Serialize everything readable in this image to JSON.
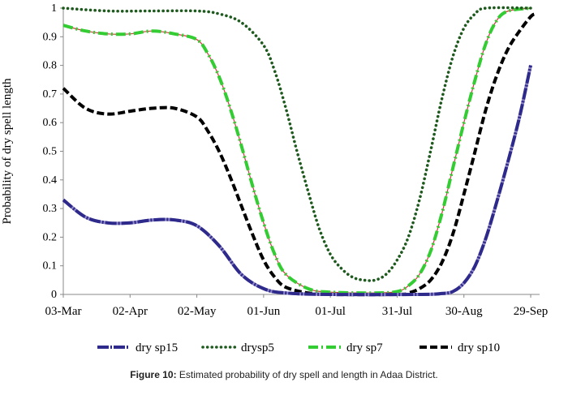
{
  "chart_data": {
    "type": "line",
    "title": "",
    "xlabel": "",
    "ylabel": "Probability of dry spell length",
    "ylim": [
      0,
      1
    ],
    "yticks": [
      0,
      0.1,
      0.2,
      0.3,
      0.4,
      0.5,
      0.6,
      0.7,
      0.8,
      0.9,
      1
    ],
    "ytick_labels": [
      "0",
      "0.1",
      "0.2",
      "0.3",
      "0.4",
      "0.5",
      "0.6",
      "0.7",
      "0.8",
      "0.9",
      "1"
    ],
    "x_start": "03-Mar",
    "x_range_days": [
      0,
      214
    ],
    "xticks": [
      {
        "day": 0,
        "label": "03-Mar"
      },
      {
        "day": 30,
        "label": "02-Apr"
      },
      {
        "day": 60,
        "label": "02-May"
      },
      {
        "day": 90,
        "label": "01-Jun"
      },
      {
        "day": 120,
        "label": "01-Jul"
      },
      {
        "day": 150,
        "label": "31-Jul"
      },
      {
        "day": 180,
        "label": "30-Aug"
      },
      {
        "day": 210,
        "label": "29-Sep"
      }
    ],
    "legend_position": "bottom",
    "series": [
      {
        "name": "dry sp15",
        "color": "#2e2a8c",
        "dash": "longdash",
        "points": [
          [
            0,
            0.33
          ],
          [
            10,
            0.27
          ],
          [
            20,
            0.25
          ],
          [
            30,
            0.25
          ],
          [
            40,
            0.26
          ],
          [
            50,
            0.26
          ],
          [
            60,
            0.24
          ],
          [
            70,
            0.17
          ],
          [
            80,
            0.07
          ],
          [
            90,
            0.02
          ],
          [
            100,
            0.005
          ],
          [
            120,
            0.0
          ],
          [
            160,
            0.0
          ],
          [
            170,
            0.003
          ],
          [
            175,
            0.01
          ],
          [
            180,
            0.04
          ],
          [
            185,
            0.1
          ],
          [
            190,
            0.2
          ],
          [
            195,
            0.33
          ],
          [
            200,
            0.47
          ],
          [
            205,
            0.62
          ],
          [
            210,
            0.8
          ]
        ]
      },
      {
        "name": "drysp5",
        "color": "#1e5a1e",
        "dash": "dotted",
        "points": [
          [
            0,
            1.0
          ],
          [
            20,
            0.99
          ],
          [
            40,
            0.99
          ],
          [
            60,
            0.99
          ],
          [
            70,
            0.98
          ],
          [
            80,
            0.95
          ],
          [
            90,
            0.87
          ],
          [
            95,
            0.78
          ],
          [
            100,
            0.65
          ],
          [
            105,
            0.5
          ],
          [
            110,
            0.36
          ],
          [
            115,
            0.23
          ],
          [
            120,
            0.14
          ],
          [
            125,
            0.09
          ],
          [
            130,
            0.06
          ],
          [
            135,
            0.05
          ],
          [
            140,
            0.05
          ],
          [
            145,
            0.07
          ],
          [
            150,
            0.12
          ],
          [
            155,
            0.2
          ],
          [
            160,
            0.33
          ],
          [
            165,
            0.5
          ],
          [
            170,
            0.68
          ],
          [
            175,
            0.83
          ],
          [
            180,
            0.93
          ],
          [
            185,
            0.98
          ],
          [
            190,
            1.0
          ],
          [
            210,
            1.0
          ]
        ]
      },
      {
        "name": "dry sp7",
        "color": "#33cc33",
        "dash": "dashdot",
        "points": [
          [
            0,
            0.94
          ],
          [
            10,
            0.92
          ],
          [
            20,
            0.91
          ],
          [
            30,
            0.91
          ],
          [
            40,
            0.92
          ],
          [
            50,
            0.91
          ],
          [
            60,
            0.89
          ],
          [
            65,
            0.84
          ],
          [
            70,
            0.76
          ],
          [
            75,
            0.65
          ],
          [
            80,
            0.52
          ],
          [
            85,
            0.38
          ],
          [
            90,
            0.25
          ],
          [
            95,
            0.14
          ],
          [
            100,
            0.07
          ],
          [
            110,
            0.02
          ],
          [
            120,
            0.008
          ],
          [
            140,
            0.005
          ],
          [
            150,
            0.01
          ],
          [
            155,
            0.03
          ],
          [
            160,
            0.07
          ],
          [
            165,
            0.15
          ],
          [
            170,
            0.28
          ],
          [
            175,
            0.44
          ],
          [
            180,
            0.6
          ],
          [
            185,
            0.75
          ],
          [
            190,
            0.88
          ],
          [
            195,
            0.96
          ],
          [
            200,
            0.99
          ],
          [
            210,
            1.0
          ]
        ]
      },
      {
        "name": "dry sp10",
        "color": "#000000",
        "dash": "dashed",
        "points": [
          [
            0,
            0.72
          ],
          [
            10,
            0.65
          ],
          [
            20,
            0.63
          ],
          [
            30,
            0.64
          ],
          [
            40,
            0.65
          ],
          [
            50,
            0.65
          ],
          [
            60,
            0.62
          ],
          [
            65,
            0.57
          ],
          [
            70,
            0.5
          ],
          [
            75,
            0.41
          ],
          [
            80,
            0.31
          ],
          [
            85,
            0.21
          ],
          [
            90,
            0.12
          ],
          [
            95,
            0.06
          ],
          [
            100,
            0.025
          ],
          [
            110,
            0.005
          ],
          [
            120,
            0.0
          ],
          [
            150,
            0.0
          ],
          [
            155,
            0.005
          ],
          [
            160,
            0.02
          ],
          [
            165,
            0.05
          ],
          [
            170,
            0.11
          ],
          [
            175,
            0.21
          ],
          [
            180,
            0.35
          ],
          [
            185,
            0.5
          ],
          [
            190,
            0.65
          ],
          [
            195,
            0.77
          ],
          [
            200,
            0.86
          ],
          [
            205,
            0.92
          ],
          [
            210,
            0.97
          ],
          [
            212,
            0.98
          ]
        ]
      }
    ]
  },
  "caption": {
    "label": "Figure 10:",
    "text": " Estimated probability of dry spell and length in Adaa District."
  }
}
